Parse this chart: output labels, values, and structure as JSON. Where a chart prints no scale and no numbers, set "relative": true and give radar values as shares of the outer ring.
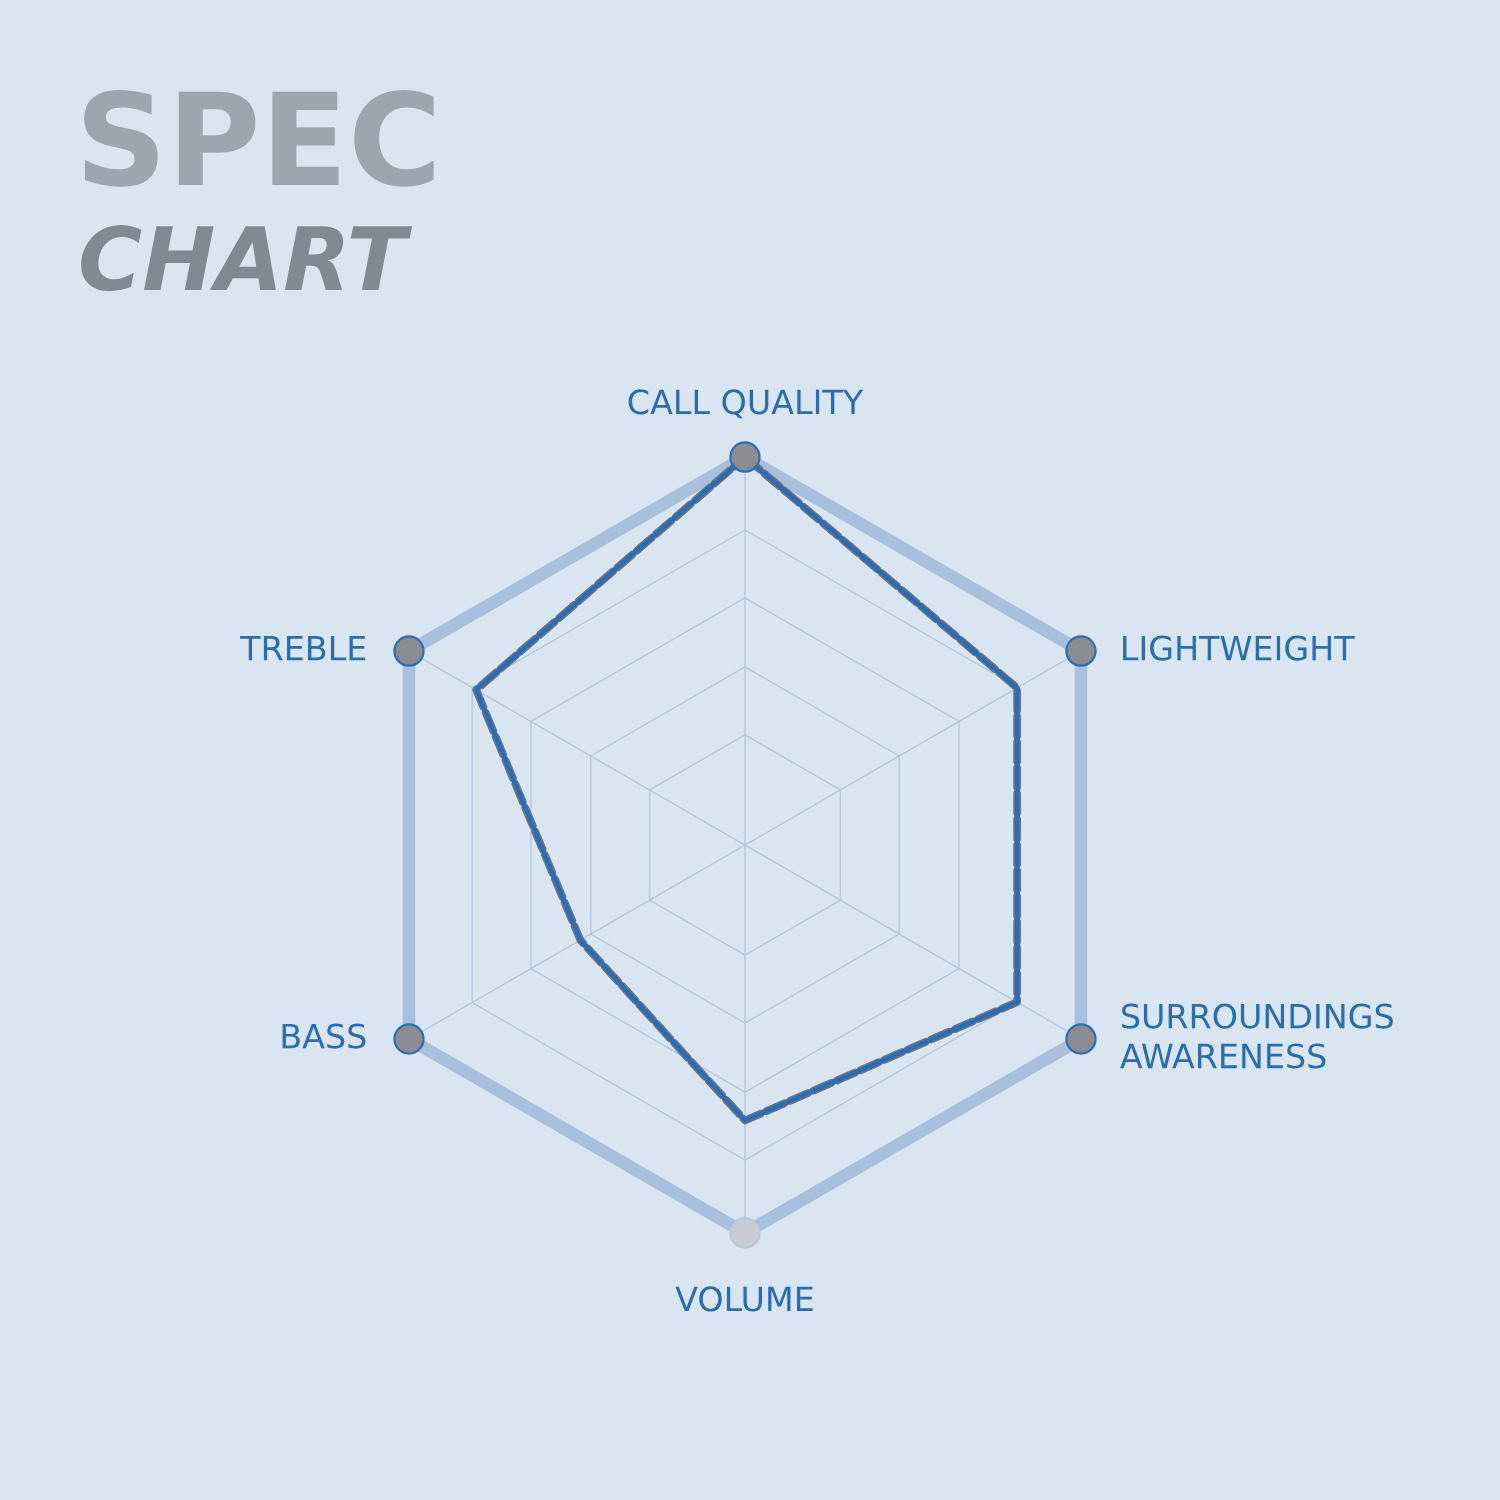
{
  "chart_data": {
    "type": "radar",
    "title": "SPEC",
    "subtitle": "CHART",
    "categories": [
      "CALL QUALITY",
      "LIGHTWEIGHT",
      "SURROUNDINGS\nAWARENESS",
      "VOLUME",
      "BASS",
      "TREBLE"
    ],
    "relative": true,
    "grid": true,
    "series": [
      {
        "color": "#2b6cb5",
        "values": [
          1.0,
          0.81,
          0.81,
          0.71,
          0.49,
          0.8
        ]
      }
    ]
  }
}
